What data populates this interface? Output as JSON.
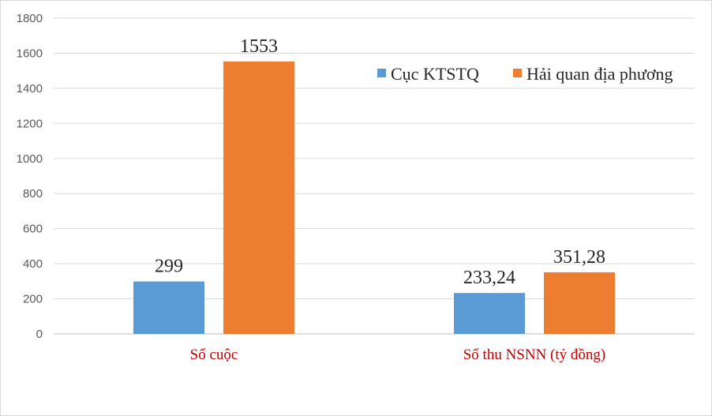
{
  "chart_data": {
    "type": "bar",
    "categories": [
      "Số cuộc",
      "Số thu NSNN (tỷ đồng)"
    ],
    "series": [
      {
        "name": "Cục KTSTQ",
        "values": [
          299,
          233.24
        ],
        "labels": [
          "299",
          "233,24"
        ],
        "color": "#5b9bd5"
      },
      {
        "name": "Hải quan địa phương",
        "values": [
          1553,
          351.28
        ],
        "labels": [
          "1553",
          "351,28"
        ],
        "color": "#ed7d31"
      }
    ],
    "ylim": [
      0,
      1800
    ],
    "yticks": [
      0,
      200,
      400,
      600,
      800,
      1000,
      1200,
      1400,
      1600,
      1800
    ],
    "grid": true,
    "legend_position": "top-right",
    "category_label_color": "#c00000"
  }
}
